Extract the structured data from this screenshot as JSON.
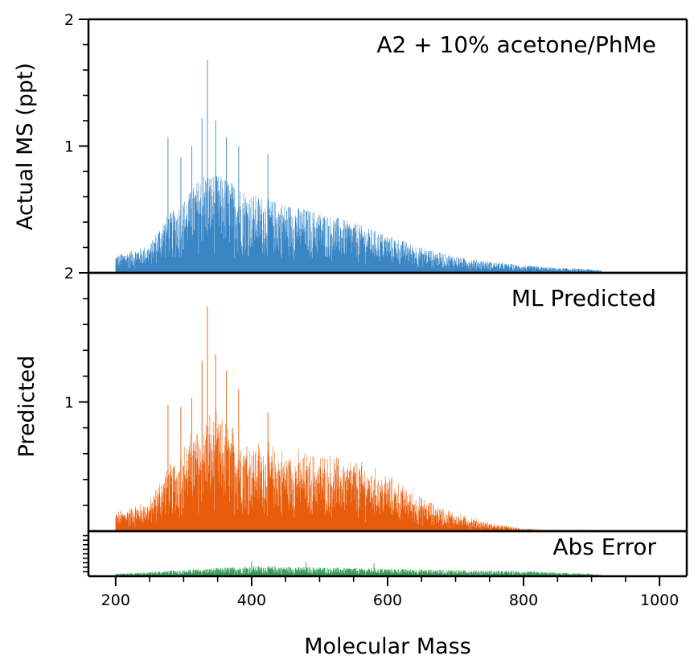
{
  "chart_data": {
    "type": "bar",
    "xlabel": "Molecular Mass",
    "xlim": [
      160,
      1040
    ],
    "x_ticks": [
      {
        "value": 200,
        "label": "200"
      },
      {
        "value": 400,
        "label": "400"
      },
      {
        "value": 600,
        "label": "600"
      },
      {
        "value": 800,
        "label": "800"
      },
      {
        "value": 1000,
        "label": "1000"
      }
    ],
    "x_minor_step": 50,
    "panels": [
      {
        "annotation": "A2 + 10% acetone/PhMe",
        "ylabel": "Actual MS (ppt)",
        "ylim": [
          0,
          2
        ],
        "y_ticks": [
          {
            "value": 1,
            "label": "1"
          },
          {
            "value": 2,
            "label": "2"
          }
        ],
        "color": "#3a86c4",
        "series": "actual"
      },
      {
        "annotation": "ML Predicted",
        "ylabel": "Predicted",
        "ylim": [
          0,
          2
        ],
        "y_ticks": [
          {
            "value": 1,
            "label": "1"
          },
          {
            "value": 2,
            "label": "2"
          }
        ],
        "color": "#e85d0c",
        "series": "predicted"
      },
      {
        "annotation": "Abs Error",
        "ylabel": "",
        "ylim": [
          0,
          0.35
        ],
        "y_ticks": [],
        "color": "#3a9a5a",
        "series": "error"
      }
    ],
    "envelope": {
      "actual": [
        [
          200,
          0.14
        ],
        [
          250,
          0.22
        ],
        [
          270,
          0.42
        ],
        [
          300,
          0.58
        ],
        [
          330,
          0.8
        ],
        [
          360,
          0.76
        ],
        [
          400,
          0.62
        ],
        [
          450,
          0.55
        ],
        [
          500,
          0.48
        ],
        [
          550,
          0.4
        ],
        [
          600,
          0.3
        ],
        [
          650,
          0.2
        ],
        [
          700,
          0.13
        ],
        [
          750,
          0.09
        ],
        [
          800,
          0.06
        ],
        [
          850,
          0.04
        ],
        [
          900,
          0.03
        ],
        [
          915,
          0.02
        ]
      ],
      "predicted": [
        [
          200,
          0.14
        ],
        [
          250,
          0.22
        ],
        [
          270,
          0.42
        ],
        [
          300,
          0.62
        ],
        [
          330,
          0.84
        ],
        [
          360,
          0.8
        ],
        [
          400,
          0.66
        ],
        [
          450,
          0.58
        ],
        [
          500,
          0.55
        ],
        [
          550,
          0.52
        ],
        [
          600,
          0.4
        ],
        [
          650,
          0.24
        ],
        [
          700,
          0.13
        ],
        [
          750,
          0.06
        ],
        [
          800,
          0.02
        ],
        [
          830,
          0.01
        ]
      ],
      "error": [
        [
          200,
          0.02
        ],
        [
          300,
          0.05
        ],
        [
          400,
          0.08
        ],
        [
          500,
          0.07
        ],
        [
          600,
          0.06
        ],
        [
          700,
          0.05
        ],
        [
          800,
          0.04
        ],
        [
          900,
          0.02
        ],
        [
          915,
          0.01
        ]
      ]
    },
    "spikes": {
      "actual": [
        [
          335,
          1.68
        ],
        [
          327,
          1.22
        ],
        [
          347,
          1.2
        ],
        [
          363,
          1.07
        ],
        [
          277,
          1.07
        ],
        [
          381,
          1.0
        ],
        [
          312,
          1.0
        ],
        [
          424,
          0.94
        ],
        [
          296,
          0.91
        ]
      ],
      "predicted": [
        [
          335,
          1.74
        ],
        [
          327,
          1.32
        ],
        [
          347,
          1.37
        ],
        [
          363,
          1.24
        ],
        [
          277,
          0.98
        ],
        [
          381,
          1.1
        ],
        [
          312,
          1.03
        ],
        [
          424,
          0.92
        ],
        [
          296,
          0.96
        ]
      ],
      "error": [
        [
          400,
          0.12
        ],
        [
          480,
          0.11
        ],
        [
          580,
          0.1
        ]
      ]
    },
    "mass_range": [
      200,
      915
    ],
    "mass_step": 0.5
  }
}
